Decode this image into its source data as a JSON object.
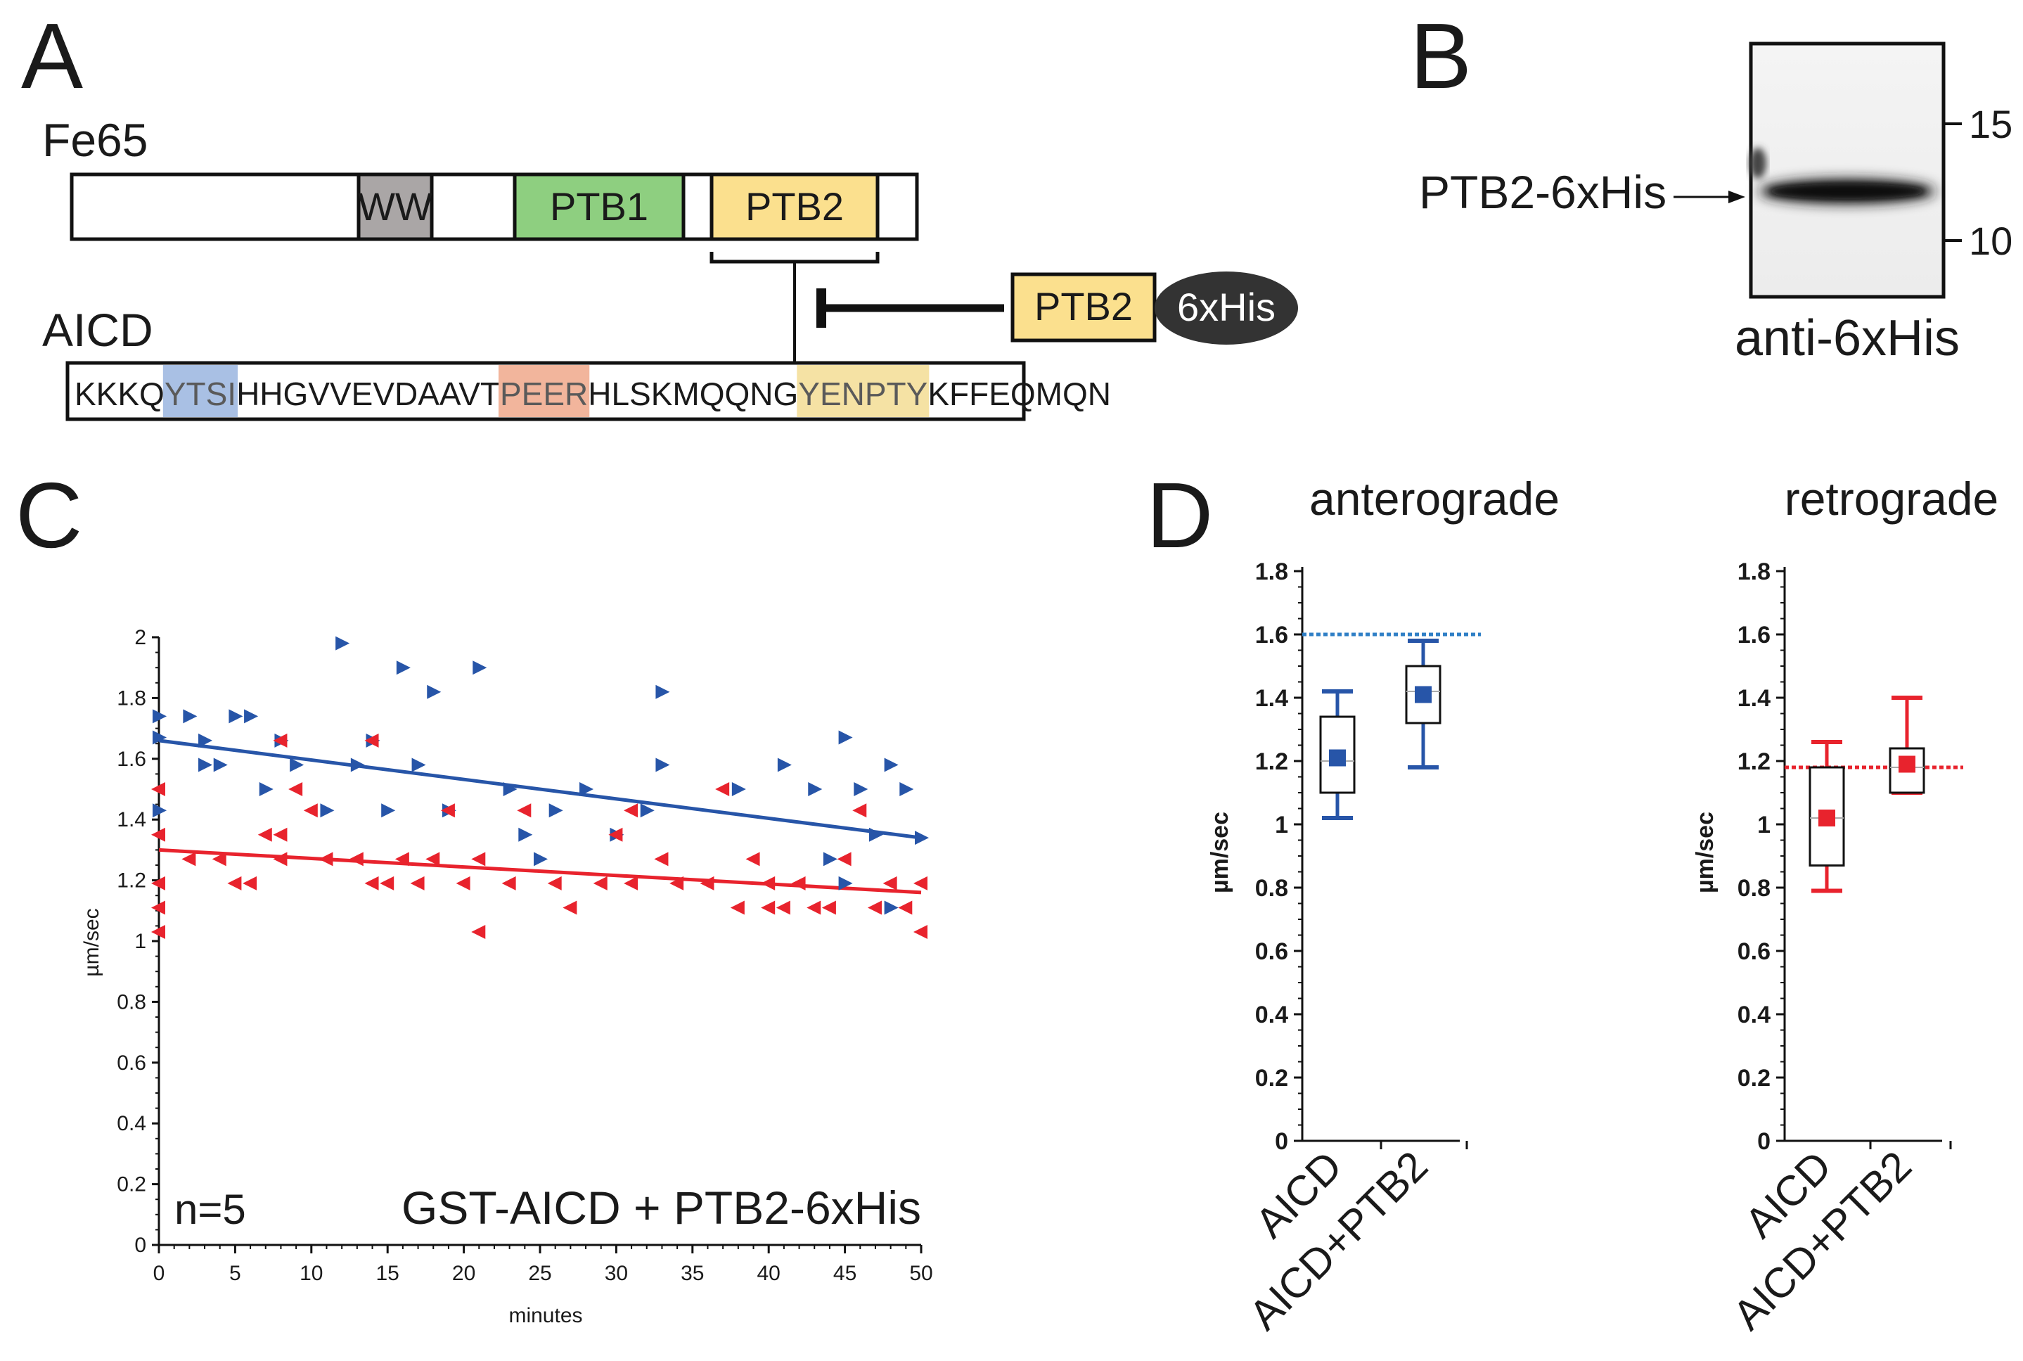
{
  "panels": {
    "a": "A",
    "b": "B",
    "c": "C",
    "d": "D"
  },
  "panel_a": {
    "fe65_label": "Fe65",
    "aicd_label": "AICD",
    "domains": {
      "ww": "WW",
      "ptb1": "PTB1",
      "ptb2": "PTB2"
    },
    "construct": {
      "ptb2": "PTB2",
      "tag": "6xHis"
    },
    "sequence": [
      {
        "text": "KKKQ",
        "highlight": ""
      },
      {
        "text": "YTSI",
        "highlight": "#a9c0e4"
      },
      {
        "text": "HHGVVEVDAAVT",
        "highlight": ""
      },
      {
        "text": "PEER",
        "highlight": "#f2b59c"
      },
      {
        "text": "HLSKMQQNG",
        "highlight": ""
      },
      {
        "text": "YENPTY",
        "highlight": "#f5e2a4"
      },
      {
        "text": "KFFEQMQN",
        "highlight": ""
      }
    ],
    "colors": {
      "ww": "#aaa6a6",
      "ptb1": "#8ecf80",
      "ptb2": "#fbe08e",
      "tag": "#333333"
    }
  },
  "panel_b": {
    "band_label": "PTB2-6xHis",
    "antibody": "anti-6xHis",
    "markers": [
      "15",
      "10"
    ]
  },
  "chart_data": [
    {
      "id": "C",
      "type": "scatter",
      "title": "",
      "xlabel": "minutes",
      "ylabel": "µm/sec",
      "xlim": [
        0,
        50
      ],
      "ylim": [
        0,
        2
      ],
      "xticks": [
        "0",
        "5",
        "10",
        "15",
        "20",
        "25",
        "30",
        "35",
        "40",
        "45",
        "50"
      ],
      "yticks": [
        "0",
        "0.2",
        "0.4",
        "0.6",
        "0.8",
        "1",
        "1.2",
        "1.4",
        "1.6",
        "1.8",
        "2"
      ],
      "annotations": [
        "n=5",
        "GST-AICD + PTB2-6xHis"
      ],
      "series": [
        {
          "name": "anterograde",
          "color": "#2755a8",
          "marker": "triangle-right",
          "trend": [
            [
              0,
              1.66
            ],
            [
              50,
              1.34
            ]
          ],
          "points": [
            [
              0,
              1.74
            ],
            [
              0,
              1.67
            ],
            [
              0,
              1.43
            ],
            [
              2,
              1.74
            ],
            [
              3,
              1.66
            ],
            [
              3,
              1.58
            ],
            [
              4,
              1.58
            ],
            [
              5,
              1.74
            ],
            [
              6,
              1.74
            ],
            [
              7,
              1.5
            ],
            [
              8,
              1.66
            ],
            [
              9,
              1.58
            ],
            [
              11,
              1.43
            ],
            [
              12,
              1.98
            ],
            [
              13,
              1.58
            ],
            [
              14,
              1.66
            ],
            [
              15,
              1.43
            ],
            [
              16,
              1.9
            ],
            [
              17,
              1.58
            ],
            [
              18,
              1.82
            ],
            [
              19,
              1.43
            ],
            [
              21,
              1.9
            ],
            [
              23,
              1.5
            ],
            [
              24,
              1.35
            ],
            [
              25,
              1.27
            ],
            [
              26,
              1.43
            ],
            [
              28,
              1.5
            ],
            [
              30,
              1.35
            ],
            [
              32,
              1.43
            ],
            [
              33,
              1.82
            ],
            [
              33,
              1.58
            ],
            [
              38,
              1.5
            ],
            [
              41,
              1.58
            ],
            [
              43,
              1.5
            ],
            [
              44,
              1.27
            ],
            [
              45,
              1.67
            ],
            [
              45,
              1.19
            ],
            [
              46,
              1.5
            ],
            [
              47,
              1.35
            ],
            [
              48,
              1.58
            ],
            [
              48,
              1.11
            ],
            [
              49,
              1.5
            ],
            [
              50,
              1.34
            ]
          ]
        },
        {
          "name": "retrograde",
          "color": "#e8232d",
          "marker": "triangle-left",
          "trend": [
            [
              0,
              1.3
            ],
            [
              50,
              1.16
            ]
          ],
          "points": [
            [
              0,
              1.5
            ],
            [
              0,
              1.35
            ],
            [
              0,
              1.19
            ],
            [
              0,
              1.11
            ],
            [
              0,
              1.03
            ],
            [
              2,
              1.27
            ],
            [
              4,
              1.27
            ],
            [
              5,
              1.19
            ],
            [
              6,
              1.19
            ],
            [
              7,
              1.35
            ],
            [
              8,
              1.35
            ],
            [
              8,
              1.27
            ],
            [
              8,
              1.66
            ],
            [
              9,
              1.5
            ],
            [
              10,
              1.43
            ],
            [
              11,
              1.27
            ],
            [
              13,
              1.27
            ],
            [
              14,
              1.19
            ],
            [
              14,
              1.66
            ],
            [
              15,
              1.19
            ],
            [
              16,
              1.27
            ],
            [
              17,
              1.19
            ],
            [
              18,
              1.27
            ],
            [
              19,
              1.43
            ],
            [
              20,
              1.19
            ],
            [
              21,
              1.27
            ],
            [
              21,
              1.03
            ],
            [
              23,
              1.19
            ],
            [
              24,
              1.43
            ],
            [
              26,
              1.19
            ],
            [
              27,
              1.11
            ],
            [
              29,
              1.19
            ],
            [
              30,
              1.35
            ],
            [
              31,
              1.43
            ],
            [
              31,
              1.19
            ],
            [
              33,
              1.27
            ],
            [
              34,
              1.19
            ],
            [
              36,
              1.19
            ],
            [
              37,
              1.5
            ],
            [
              38,
              1.11
            ],
            [
              39,
              1.27
            ],
            [
              40,
              1.19
            ],
            [
              40,
              1.11
            ],
            [
              41,
              1.11
            ],
            [
              42,
              1.19
            ],
            [
              43,
              1.11
            ],
            [
              44,
              1.11
            ],
            [
              45,
              1.27
            ],
            [
              46,
              1.43
            ],
            [
              47,
              1.11
            ],
            [
              48,
              1.19
            ],
            [
              49,
              1.11
            ],
            [
              50,
              1.19
            ],
            [
              50,
              1.03
            ]
          ]
        }
      ]
    },
    {
      "id": "D-anterograde",
      "type": "box",
      "title": "anterograde",
      "ylabel": "µm/sec",
      "ylim": [
        0,
        1.8
      ],
      "yticks": [
        "0",
        "0.2",
        "0.4",
        "0.6",
        "0.8",
        "1",
        "1.2",
        "1.4",
        "1.6",
        "1.8"
      ],
      "categories": [
        "AICD",
        "AICD+PTB2"
      ],
      "color": "#2755a8",
      "reference_line": 1.6,
      "reference_color": "#2f7fc6",
      "boxes": [
        {
          "category": "AICD",
          "whisker_low": 1.02,
          "q1": 1.1,
          "median": 1.2,
          "q3": 1.34,
          "whisker_high": 1.42,
          "mean": 1.21
        },
        {
          "category": "AICD+PTB2",
          "whisker_low": 1.18,
          "q1": 1.32,
          "median": 1.42,
          "q3": 1.5,
          "whisker_high": 1.58,
          "mean": 1.41
        }
      ]
    },
    {
      "id": "D-retrograde",
      "type": "box",
      "title": "retrograde",
      "ylabel": "µm/sec",
      "ylim": [
        0,
        1.8
      ],
      "yticks": [
        "0",
        "0.2",
        "0.4",
        "0.6",
        "0.8",
        "1",
        "1.2",
        "1.4",
        "1.6",
        "1.8"
      ],
      "categories": [
        "AICD",
        "AICD+PTB2"
      ],
      "color": "#e8232d",
      "reference_line": 1.18,
      "reference_color": "#e8232d",
      "boxes": [
        {
          "category": "AICD",
          "whisker_low": 0.79,
          "q1": 0.87,
          "median": 1.02,
          "q3": 1.18,
          "whisker_high": 1.26,
          "mean": 1.02
        },
        {
          "category": "AICD+PTB2",
          "whisker_low": 1.1,
          "q1": 1.1,
          "median": 1.18,
          "q3": 1.24,
          "whisker_high": 1.4,
          "mean": 1.19
        }
      ]
    }
  ]
}
